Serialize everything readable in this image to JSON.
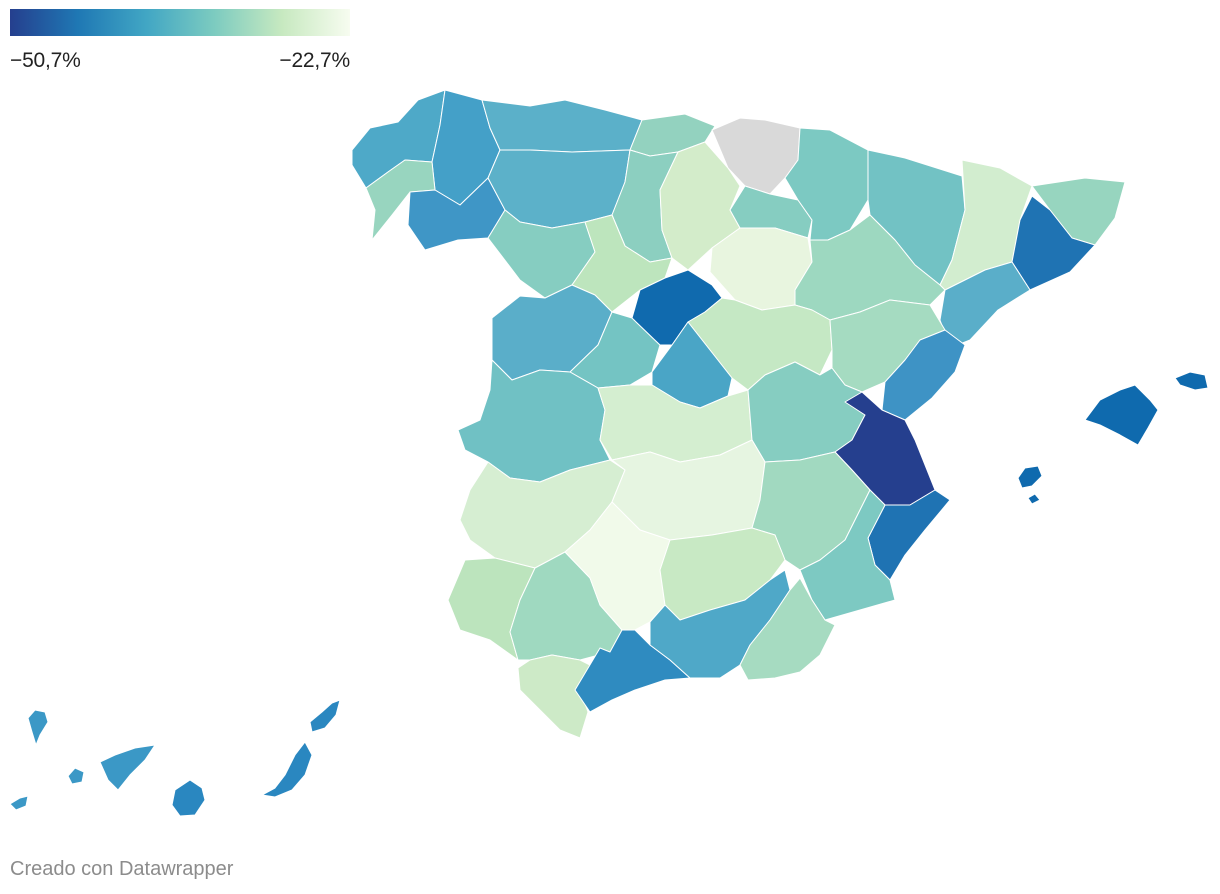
{
  "legend": {
    "min_label": "−50,7%",
    "max_label": "−22,7%",
    "min_value": -50.7,
    "max_value": -22.7,
    "gradient": [
      "#253f8e",
      "#1f78b4",
      "#41a6c4",
      "#7ccbc0",
      "#c7e9c0",
      "#f7fcf0"
    ]
  },
  "no_data_color": "#d9d9d9",
  "regions": [
    {
      "name": "A Coruña",
      "color": "#4ea9c8"
    },
    {
      "name": "Lugo",
      "color": "#44a0c8"
    },
    {
      "name": "Pontevedra",
      "color": "#98d5bf"
    },
    {
      "name": "Ourense",
      "color": "#3f96c6"
    },
    {
      "name": "Asturias",
      "color": "#5bb0c9"
    },
    {
      "name": "Cantabria",
      "color": "#93d2bf"
    },
    {
      "name": "Vizcaya / Guipúzcoa / Álava",
      "color": "#d9d9d9"
    },
    {
      "name": "León",
      "color": "#5cb1c9"
    },
    {
      "name": "Palencia",
      "color": "#8ccfc0"
    },
    {
      "name": "Burgos",
      "color": "#d3ecca"
    },
    {
      "name": "La Rioja",
      "color": "#86cdc1"
    },
    {
      "name": "Navarra",
      "color": "#7cc9c2"
    },
    {
      "name": "Huesca",
      "color": "#72c2c4"
    },
    {
      "name": "Lleida",
      "color": "#d2edcf"
    },
    {
      "name": "Girona",
      "color": "#97d5bf"
    },
    {
      "name": "Barcelona",
      "color": "#1f73b3"
    },
    {
      "name": "Tarragona",
      "color": "#5aaec9"
    },
    {
      "name": "Zamora",
      "color": "#86cdc1"
    },
    {
      "name": "Valladolid",
      "color": "#bde5bd"
    },
    {
      "name": "Soria",
      "color": "#e8f5df"
    },
    {
      "name": "Zaragoza",
      "color": "#9dd8c0"
    },
    {
      "name": "Salamanca",
      "color": "#5aaec9"
    },
    {
      "name": "Ávila",
      "color": "#74c4c3"
    },
    {
      "name": "Segovia",
      "color": "#106aae"
    },
    {
      "name": "Guadalajara",
      "color": "#c5e8c4"
    },
    {
      "name": "Teruel",
      "color": "#a5dbc1"
    },
    {
      "name": "Castellón",
      "color": "#3e93c5"
    },
    {
      "name": "Madrid",
      "color": "#4aa5c6"
    },
    {
      "name": "Cáceres",
      "color": "#70c1c4"
    },
    {
      "name": "Toledo",
      "color": "#d4eed0"
    },
    {
      "name": "Cuenca",
      "color": "#86cdc1"
    },
    {
      "name": "Valencia",
      "color": "#253f8e"
    },
    {
      "name": "Badajoz",
      "color": "#d6eed2"
    },
    {
      "name": "Ciudad Real",
      "color": "#e6f5e1"
    },
    {
      "name": "Albacete",
      "color": "#a1d9c0"
    },
    {
      "name": "Alicante",
      "color": "#1f73b3"
    },
    {
      "name": "Huelva",
      "color": "#bce4bd"
    },
    {
      "name": "Sevilla",
      "color": "#9fd9c0"
    },
    {
      "name": "Córdoba",
      "color": "#f1faea"
    },
    {
      "name": "Jaén",
      "color": "#c8e9c4"
    },
    {
      "name": "Murcia",
      "color": "#7dc9c2"
    },
    {
      "name": "Cádiz",
      "color": "#cdeac7"
    },
    {
      "name": "Málaga",
      "color": "#2f8bc0"
    },
    {
      "name": "Granada",
      "color": "#4fa8c8"
    },
    {
      "name": "Almería",
      "color": "#a6dbc1"
    },
    {
      "name": "Islas Baleares",
      "color": "#0f6aae"
    },
    {
      "name": "Santa Cruz de Tenerife",
      "color": "#3b98c6"
    },
    {
      "name": "Las Palmas",
      "color": "#2a87c0"
    }
  ],
  "credit": "Creado con Datawrapper"
}
